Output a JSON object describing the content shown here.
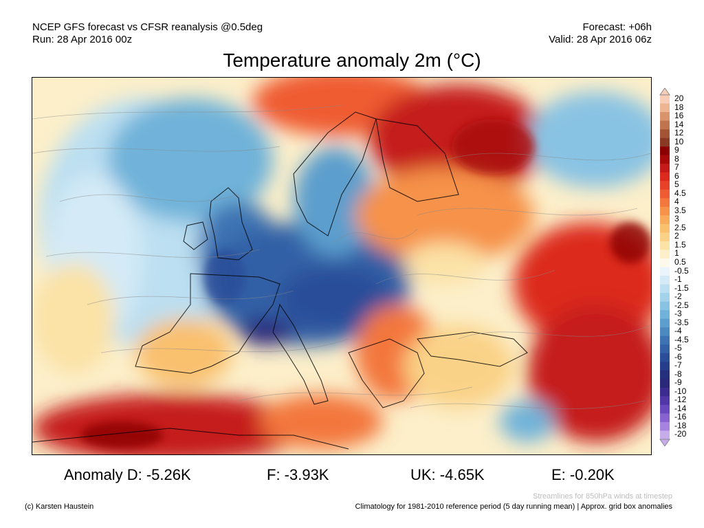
{
  "header": {
    "left_line1": "NCEP GFS forecast vs CFSR reanalysis @0.5deg",
    "left_line2": "Run: 28 Apr 2016 00z",
    "right_line1": "Forecast: +06h",
    "right_line2": "Valid: 28 Apr 2016 06z"
  },
  "title": "Temperature anomaly 2m (°C)",
  "colorbar": {
    "labels": [
      "20",
      "18",
      "16",
      "14",
      "12",
      "10",
      "9",
      "8",
      "7",
      "6",
      "5",
      "4.5",
      "4",
      "3.5",
      "3",
      "2.5",
      "2",
      "1.5",
      "1",
      "0.5",
      "-0.5",
      "-1",
      "-1.5",
      "-2",
      "-2.5",
      "-3",
      "-3.5",
      "-4",
      "-4.5",
      "-5",
      "-6",
      "-7",
      "-8",
      "-9",
      "-10",
      "-12",
      "-14",
      "-16",
      "-18",
      "-20"
    ],
    "colors": [
      "#f7cdb8",
      "#eeb592",
      "#d9946c",
      "#c0744e",
      "#a35435",
      "#8a3a22",
      "#8b0000",
      "#a80a0a",
      "#c51a1a",
      "#dc2a1f",
      "#e8412a",
      "#ef5b32",
      "#f3773d",
      "#f6924a",
      "#f8ab5a",
      "#f9c06e",
      "#fad287",
      "#fbe2a6",
      "#fcefca",
      "#fcf8ea",
      "#eaf4fa",
      "#d4eaf6",
      "#bcdff1",
      "#a3d2eb",
      "#89c3e3",
      "#70b2d9",
      "#5c9ecd",
      "#4b89c0",
      "#3d73b2",
      "#3360a6",
      "#2b4d99",
      "#253d8b",
      "#24307c",
      "#2a2879",
      "#3c2c8f",
      "#5036a6",
      "#6a48bd",
      "#8763d0",
      "#a583df",
      "#c6aceb"
    ]
  },
  "anomalies": [
    {
      "label": "Anomaly D: -5.26K"
    },
    {
      "label": "F: -3.93K"
    },
    {
      "label": "UK: -4.65K"
    },
    {
      "label": "E: -0.20K"
    }
  ],
  "footer": {
    "left": "(c) Karsten Haustein",
    "right_line1": "Streamlines for 850hPa winds at timestep",
    "right_line2": "Climatology for 1981-2010 reference period (5 day running mean) | Approx. grid box anomalies"
  }
}
